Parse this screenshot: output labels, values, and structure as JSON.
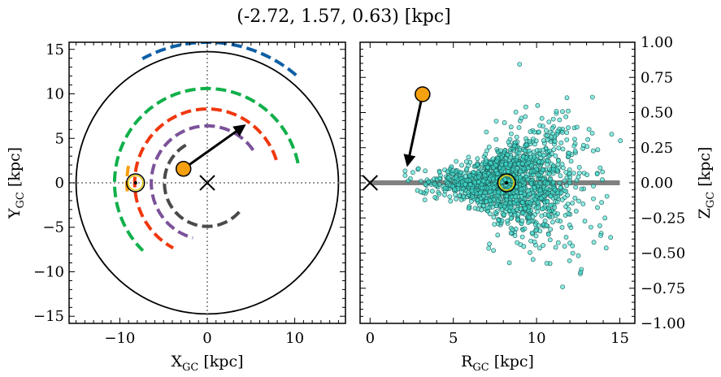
{
  "title": "(-2.72, 1.57, 0.63) [kpc]",
  "chart_data": [
    {
      "type": "scatter",
      "panel": "galactic-plane-xy",
      "xlabel": "X_GC [kpc]",
      "ylabel": "Y_GC [kpc]",
      "xlim": [
        -15.8,
        15.8
      ],
      "ylim": [
        -15.8,
        15.8
      ],
      "xticks": [
        -10,
        0,
        10
      ],
      "yticks": [
        -15,
        -10,
        -5,
        0,
        5,
        10,
        15
      ],
      "xtick_labels": [
        "−10",
        "0",
        "10"
      ],
      "ytick_labels": [
        "−15",
        "−10",
        "−5",
        "0",
        "5",
        "10",
        "15"
      ],
      "grid": false,
      "outer_circle_radius": 15,
      "galactic_center": {
        "x": 0,
        "y": 0,
        "marker": "x"
      },
      "sun": {
        "x": -8.2,
        "y": 0,
        "marker": "sun-symbol"
      },
      "object": {
        "x": -2.72,
        "y": 1.57,
        "color": "#f5a00f"
      },
      "velocity_arrow": {
        "from": [
          -2.72,
          1.57
        ],
        "to": [
          4.2,
          6.4
        ]
      },
      "spiral_arms": [
        {
          "color": "#4a4a4a",
          "radius": 4.9,
          "theta_deg": [
            120,
            325
          ]
        },
        {
          "color": "#7b529a",
          "radius": 6.4,
          "theta_deg": [
            35,
            255
          ]
        },
        {
          "color": "#f0380e",
          "radius": 8.3,
          "theta_deg": [
            18,
            242
          ]
        },
        {
          "color": "#10b04a",
          "radius": 10.6,
          "theta_deg": [
            12,
            226
          ]
        },
        {
          "color": "#0e5fa5",
          "radius": 15.8,
          "theta_deg": [
            50,
            118
          ]
        },
        {
          "color": "#f5a00f",
          "radius": 9.2,
          "theta_deg": [
            168,
            186
          ]
        }
      ]
    },
    {
      "type": "scatter",
      "panel": "meridional-rz",
      "xlabel": "R_GC [kpc]",
      "ylabel": "Z_GC [kpc]",
      "xlim": [
        -0.6,
        15.9
      ],
      "ylim": [
        -1.0,
        1.0
      ],
      "xticks": [
        0,
        5,
        10,
        15
      ],
      "yticks": [
        -1.0,
        -0.75,
        -0.5,
        -0.25,
        0.0,
        0.25,
        0.5,
        0.75,
        1.0
      ],
      "xtick_labels": [
        "0",
        "5",
        "10",
        "15"
      ],
      "ytick_labels": [
        "−1.00",
        "−0.75",
        "−0.50",
        "−0.25",
        "0.00",
        "0.25",
        "0.50",
        "0.75",
        "1.00"
      ],
      "grid": false,
      "disk_line": {
        "x": [
          0,
          15
        ],
        "y": 0,
        "color": "#808080"
      },
      "galactic_center": {
        "x": 0,
        "y": 0,
        "marker": "x"
      },
      "sun": {
        "x": 8.2,
        "y": 0,
        "marker": "sun-symbol"
      },
      "object": {
        "x": 3.15,
        "y": 0.63,
        "color": "#f5a00f"
      },
      "velocity_arrow": {
        "from": [
          3.15,
          0.63
        ],
        "to": [
          2.25,
          0.13
        ]
      },
      "stars": {
        "color": "#40e0d0",
        "count": 1500,
        "x_range": [
          1.5,
          15.5
        ],
        "y_range": [
          -1.0,
          0.97
        ]
      }
    }
  ]
}
